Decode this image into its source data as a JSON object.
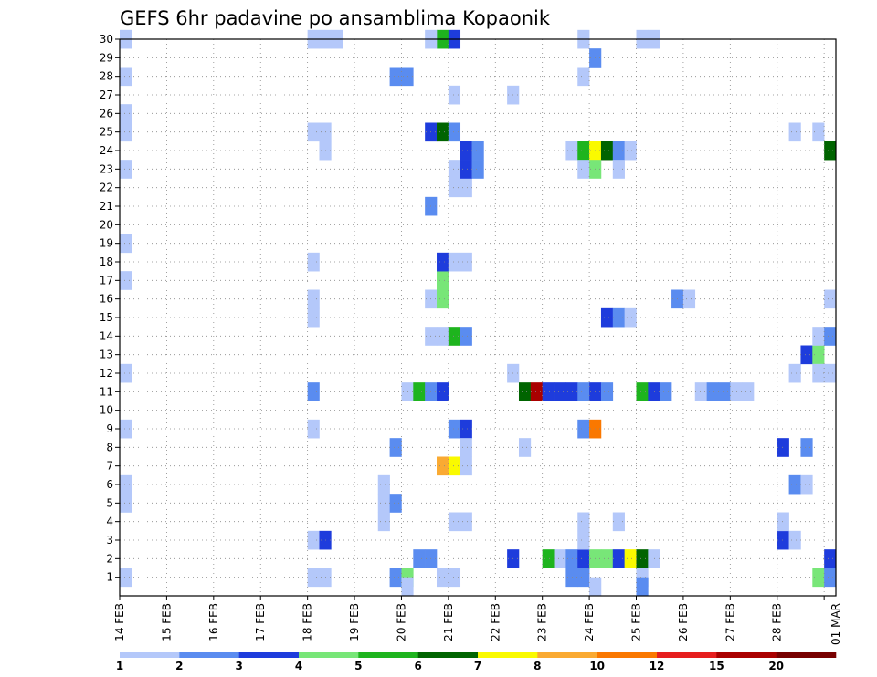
{
  "chart_data": {
    "type": "heatmap",
    "title": "GEFS 6hr padavine po ansamblima Kopaonik",
    "xlabel": "",
    "ylabel": "",
    "x_ticks": [
      "14 FEB",
      "15 FEB",
      "16 FEB",
      "17 FEB",
      "18 FEB",
      "19 FEB",
      "20 FEB",
      "21 FEB",
      "22 FEB",
      "23 FEB",
      "24 FEB",
      "25 FEB",
      "26 FEB",
      "27 FEB",
      "28 FEB",
      "01 MAR"
    ],
    "y_ticks": [
      1,
      2,
      3,
      4,
      5,
      6,
      7,
      8,
      9,
      10,
      11,
      12,
      13,
      14,
      15,
      16,
      17,
      18,
      19,
      20,
      21,
      22,
      23,
      24,
      25,
      26,
      27,
      28,
      29,
      30
    ],
    "x_range_days": [
      0,
      15.25
    ],
    "y_range": [
      0,
      30
    ],
    "grid": true,
    "colorbar": {
      "labels": [
        "1",
        "2",
        "3",
        "4",
        "5",
        "6",
        "7",
        "8",
        "10",
        "12",
        "15",
        "20"
      ],
      "colors": [
        "#b4c8fa",
        "#5a8cf0",
        "#1e3cdc",
        "#78e678",
        "#1eb41e",
        "#006400",
        "#fafa00",
        "#faaa32",
        "#fa7800",
        "#e61e1e",
        "#aa0000",
        "#780000"
      ]
    },
    "cells_note": "each cell: [day offset from 14 FEB start (0.25 = one 6h step), ensemble member, class index]",
    "cells": [
      [
        0.0,
        1,
        0
      ],
      [
        0.0,
        5,
        0
      ],
      [
        0.0,
        6,
        0
      ],
      [
        0.0,
        9,
        0
      ],
      [
        0.0,
        12,
        0
      ],
      [
        0.0,
        17,
        0
      ],
      [
        0.0,
        19,
        0
      ],
      [
        0.0,
        23,
        0
      ],
      [
        0.0,
        25,
        0
      ],
      [
        0.0,
        26,
        0
      ],
      [
        0.0,
        28,
        0
      ],
      [
        0.0,
        30,
        0
      ],
      [
        4.0,
        1,
        0
      ],
      [
        4.25,
        1,
        0
      ],
      [
        4.0,
        3,
        0
      ],
      [
        4.25,
        3,
        2
      ],
      [
        4.0,
        9,
        0
      ],
      [
        4.0,
        11,
        1
      ],
      [
        4.0,
        15,
        0
      ],
      [
        4.0,
        16,
        0
      ],
      [
        4.0,
        18,
        0
      ],
      [
        4.0,
        25,
        0
      ],
      [
        4.25,
        25,
        0
      ],
      [
        4.25,
        24,
        0
      ],
      [
        4.0,
        30,
        0
      ],
      [
        4.25,
        30,
        0
      ],
      [
        4.5,
        30,
        0
      ],
      [
        5.5,
        4,
        0
      ],
      [
        5.5,
        5,
        0
      ],
      [
        5.5,
        6,
        0
      ],
      [
        5.75,
        5,
        1
      ],
      [
        5.75,
        8,
        1
      ],
      [
        5.75,
        1,
        1
      ],
      [
        6.0,
        1,
        3
      ],
      [
        6.0,
        0.5,
        0
      ],
      [
        5.75,
        28,
        1
      ],
      [
        6.0,
        28,
        1
      ],
      [
        6.0,
        11,
        0
      ],
      [
        6.25,
        11,
        4
      ],
      [
        6.5,
        11,
        1
      ],
      [
        6.75,
        11,
        2
      ],
      [
        6.25,
        2,
        1
      ],
      [
        6.5,
        2,
        1
      ],
      [
        6.5,
        14,
        0
      ],
      [
        6.75,
        14,
        0
      ],
      [
        7.0,
        14,
        4
      ],
      [
        7.25,
        14,
        1
      ],
      [
        6.5,
        16,
        0
      ],
      [
        6.75,
        16,
        3
      ],
      [
        6.75,
        17,
        3
      ],
      [
        6.75,
        18,
        2
      ],
      [
        6.75,
        7,
        7
      ],
      [
        7.0,
        7,
        6
      ],
      [
        7.25,
        7,
        0
      ],
      [
        6.5,
        21,
        1
      ],
      [
        6.5,
        25,
        2
      ],
      [
        6.75,
        25,
        5
      ],
      [
        7.0,
        25,
        1
      ],
      [
        6.75,
        30,
        4
      ],
      [
        7.0,
        30,
        2
      ],
      [
        6.5,
        30,
        0
      ],
      [
        6.75,
        1,
        0
      ],
      [
        7.0,
        1,
        0
      ],
      [
        7.0,
        4,
        0
      ],
      [
        7.25,
        4,
        0
      ],
      [
        7.0,
        9,
        1
      ],
      [
        7.25,
        9,
        2
      ],
      [
        7.25,
        8,
        0
      ],
      [
        7.0,
        18,
        0
      ],
      [
        7.25,
        18,
        0
      ],
      [
        7.0,
        22,
        0
      ],
      [
        7.25,
        22,
        0
      ],
      [
        7.0,
        23,
        0
      ],
      [
        7.25,
        23,
        2
      ],
      [
        7.5,
        23,
        1
      ],
      [
        7.25,
        24,
        2
      ],
      [
        7.5,
        24,
        1
      ],
      [
        7.0,
        27,
        0
      ],
      [
        8.25,
        27,
        0
      ],
      [
        8.25,
        2,
        2
      ],
      [
        8.25,
        12,
        0
      ],
      [
        8.5,
        8,
        0
      ],
      [
        8.5,
        11,
        5
      ],
      [
        8.75,
        11,
        10
      ],
      [
        9.0,
        11,
        2
      ],
      [
        9.25,
        11,
        2
      ],
      [
        9.5,
        11,
        2
      ],
      [
        9.75,
        11,
        1
      ],
      [
        10.0,
        11,
        2
      ],
      [
        10.25,
        11,
        1
      ],
      [
        9.0,
        2,
        4
      ],
      [
        9.25,
        2,
        0
      ],
      [
        9.5,
        2,
        1
      ],
      [
        9.75,
        2,
        2
      ],
      [
        10.0,
        2,
        3
      ],
      [
        10.25,
        2,
        3
      ],
      [
        10.5,
        2,
        2
      ],
      [
        10.75,
        2,
        6
      ],
      [
        11.0,
        2,
        5
      ],
      [
        11.25,
        2,
        0
      ],
      [
        9.5,
        1,
        1
      ],
      [
        9.75,
        1,
        1
      ],
      [
        10.0,
        0.5,
        0
      ],
      [
        9.75,
        3,
        0
      ],
      [
        10.5,
        4,
        0
      ],
      [
        9.75,
        4,
        0
      ],
      [
        9.75,
        9,
        1
      ],
      [
        10.0,
        9,
        8
      ],
      [
        10.25,
        15,
        2
      ],
      [
        10.5,
        15,
        1
      ],
      [
        10.75,
        15,
        0
      ],
      [
        9.5,
        24,
        0
      ],
      [
        9.75,
        24,
        4
      ],
      [
        10.0,
        24,
        6
      ],
      [
        10.25,
        24,
        5
      ],
      [
        10.5,
        24,
        1
      ],
      [
        10.75,
        24,
        0
      ],
      [
        9.75,
        23,
        0
      ],
      [
        10.0,
        23,
        3
      ],
      [
        10.5,
        23,
        0
      ],
      [
        9.75,
        28,
        0
      ],
      [
        9.75,
        30,
        0
      ],
      [
        10.0,
        29,
        1
      ],
      [
        11.0,
        11,
        4
      ],
      [
        11.25,
        11,
        2
      ],
      [
        11.5,
        11,
        1
      ],
      [
        11.0,
        1,
        0
      ],
      [
        11.0,
        0.5,
        1
      ],
      [
        11.0,
        30,
        0
      ],
      [
        11.25,
        30,
        0
      ],
      [
        11.75,
        16,
        1
      ],
      [
        12.0,
        16,
        0
      ],
      [
        12.25,
        11,
        0
      ],
      [
        12.5,
        11,
        1
      ],
      [
        12.75,
        11,
        1
      ],
      [
        13.0,
        11,
        0
      ],
      [
        13.25,
        11,
        0
      ],
      [
        14.0,
        3,
        2
      ],
      [
        14.25,
        3,
        0
      ],
      [
        14.0,
        4,
        0
      ],
      [
        14.0,
        8,
        2
      ],
      [
        14.25,
        6,
        1
      ],
      [
        14.5,
        6,
        0
      ],
      [
        14.5,
        8,
        1
      ],
      [
        14.25,
        12,
        0
      ],
      [
        14.25,
        25,
        0
      ],
      [
        14.75,
        25,
        0
      ],
      [
        14.5,
        13,
        2
      ],
      [
        14.75,
        13,
        3
      ],
      [
        14.75,
        12,
        0
      ],
      [
        15.0,
        12,
        0
      ],
      [
        14.75,
        14,
        0
      ],
      [
        15.0,
        14,
        1
      ],
      [
        15.0,
        16,
        0
      ],
      [
        14.75,
        1,
        3
      ],
      [
        15.0,
        1,
        1
      ],
      [
        15.0,
        2,
        2
      ],
      [
        15.0,
        24,
        5
      ]
    ]
  }
}
